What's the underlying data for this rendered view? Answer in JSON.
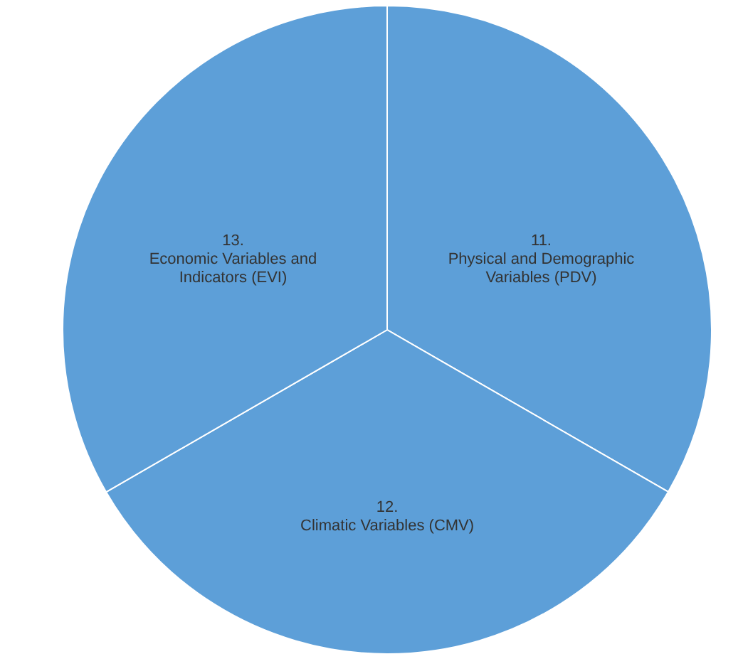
{
  "chart_data": {
    "type": "pie",
    "categories": [
      "11. Physical and Demographic Variables (PDV)",
      "12. Climatic Variables (CMV)",
      "13. Economic Variables and Indicators (EVI)"
    ],
    "values": [
      33.33,
      33.33,
      33.34
    ],
    "colors": [
      "#5d9fd8",
      "#5d9fd8",
      "#5d9fd8"
    ]
  }
}
